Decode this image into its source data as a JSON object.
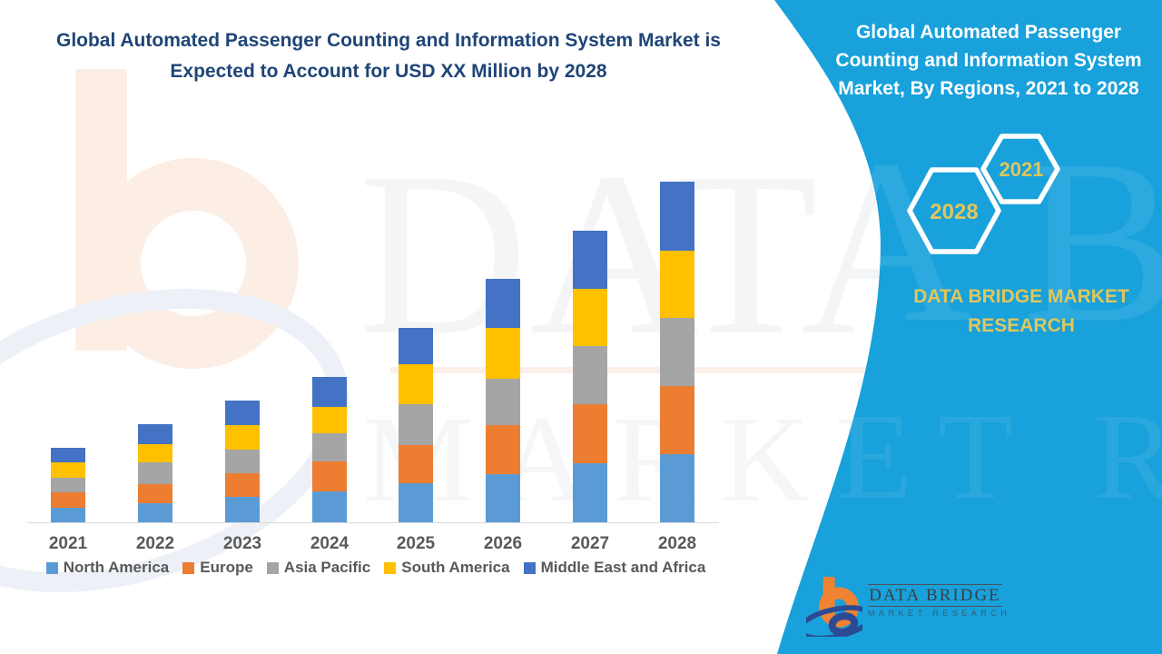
{
  "page": {
    "band_color": "#18A1DB",
    "title_color": "#1F4577",
    "gold": "#DFC65C"
  },
  "main_title": {
    "line1": "Global Automated Passenger Counting and Information System Market is",
    "line2": "Expected to Account for USD XX Million by 2028"
  },
  "side_panel": {
    "title": "Global Automated Passenger Counting and Information System Market, By Regions, 2021 to 2028",
    "hexagons": [
      {
        "label": "2021"
      },
      {
        "label": "2028"
      }
    ],
    "brand_text": "DATA BRIDGE MARKET RESEARCH"
  },
  "watermark": {
    "line1": "DATA BRIDGE",
    "line2": "MARKET RESEARCH"
  },
  "logo": {
    "name": "DATA BRIDGE",
    "subtitle": "MARKET RESEARCH"
  },
  "chart_data": {
    "type": "bar",
    "stacked": true,
    "title": "Global Automated Passenger Counting and Information System Market is Expected to Account for USD XX Million by 2028",
    "xlabel": "",
    "ylabel": "",
    "y_axis_visible": false,
    "grid": false,
    "legend_position": "bottom",
    "ylim": [
      0,
      400
    ],
    "units": "relative (USD XX Million, values not labeled)",
    "categories": [
      "2021",
      "2022",
      "2023",
      "2024",
      "2025",
      "2026",
      "2027",
      "2028"
    ],
    "series": [
      {
        "name": "North America",
        "color": "#5B9BD5",
        "values": [
          16,
          21,
          28,
          34,
          43,
          53,
          65,
          75
        ]
      },
      {
        "name": "Europe",
        "color": "#ED7D31",
        "values": [
          17,
          21,
          26,
          33,
          42,
          54,
          65,
          75
        ]
      },
      {
        "name": "Asia Pacific",
        "color": "#A5A5A5",
        "values": [
          16,
          24,
          26,
          31,
          45,
          51,
          64,
          75
        ]
      },
      {
        "name": "South America",
        "color": "#FFC000",
        "values": [
          17,
          20,
          27,
          29,
          44,
          56,
          63,
          74
        ]
      },
      {
        "name": "Middle East and Africa",
        "color": "#4472C4",
        "values": [
          16,
          22,
          27,
          33,
          40,
          54,
          64,
          76
        ]
      }
    ],
    "totals": [
      82,
      108,
      134,
      160,
      214,
      268,
      321,
      375
    ]
  }
}
